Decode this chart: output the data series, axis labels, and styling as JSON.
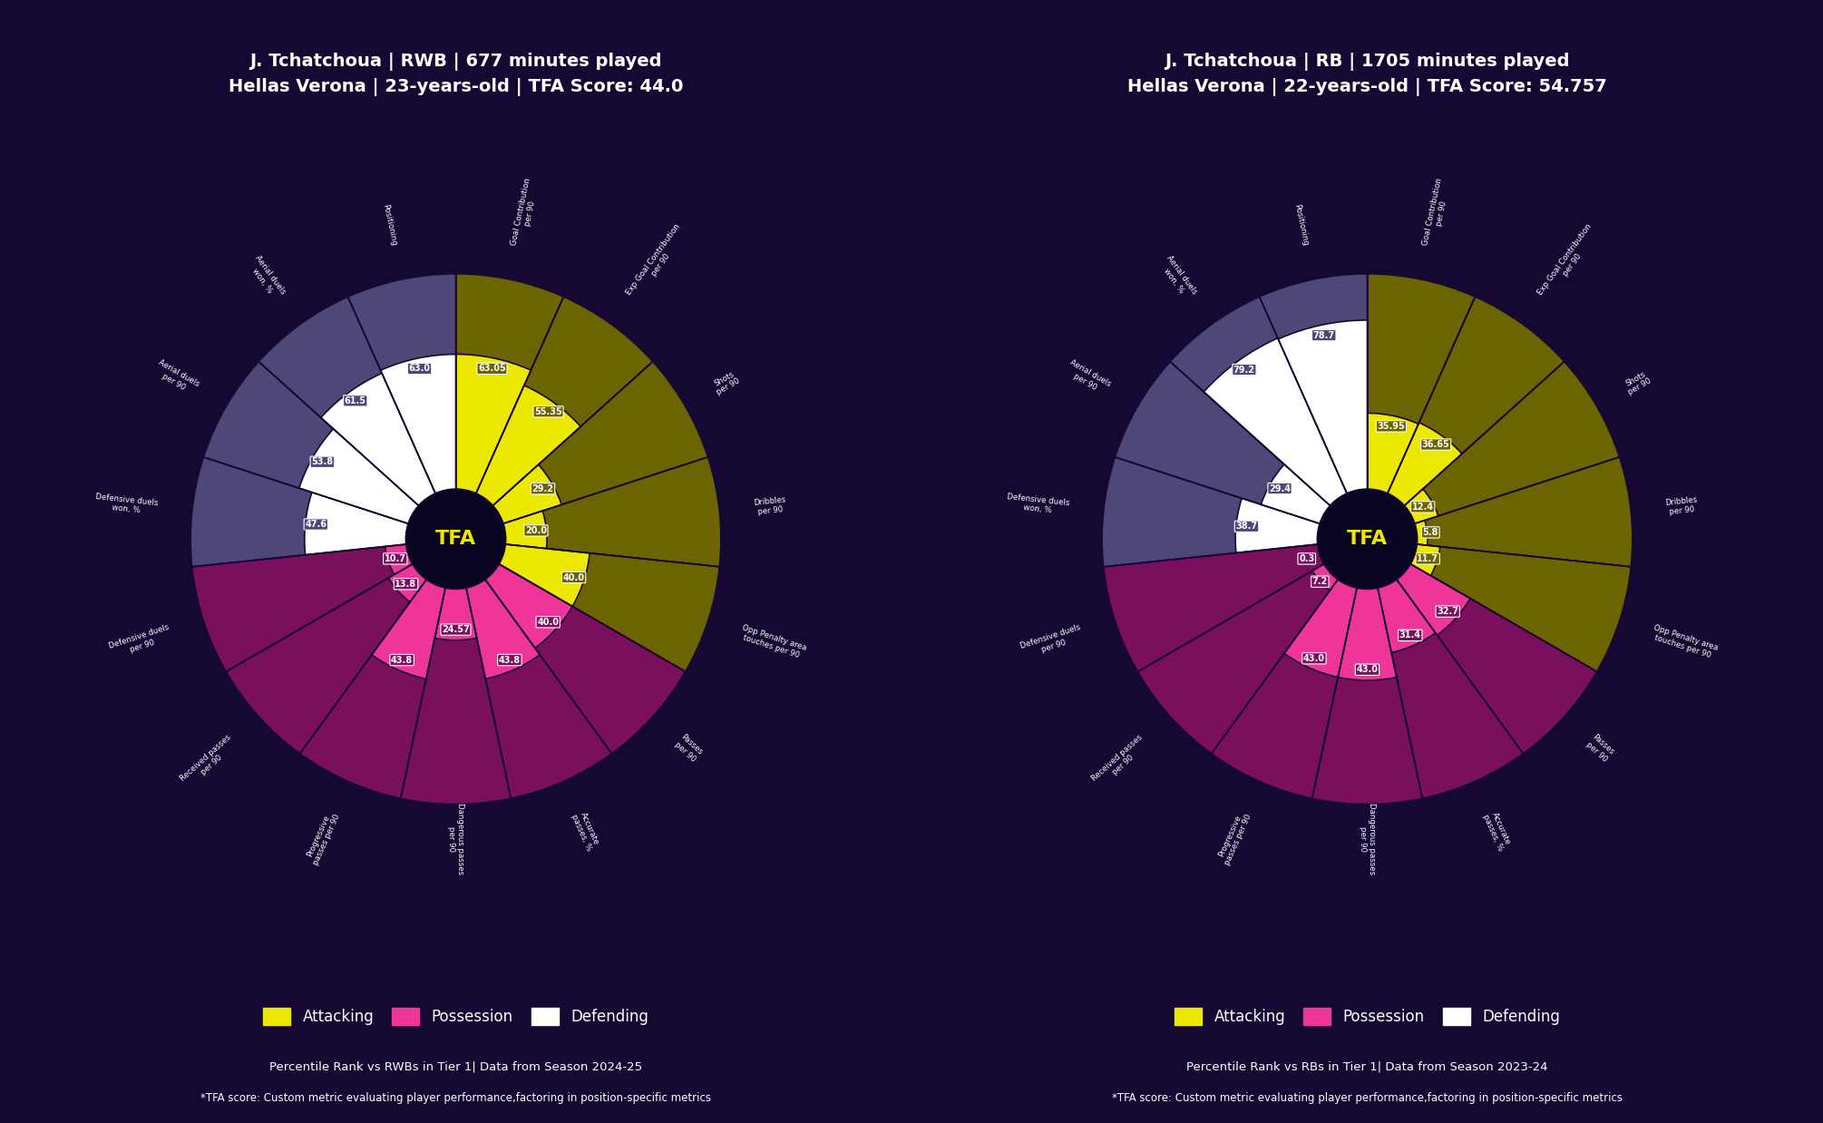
{
  "charts": [
    {
      "title_line1": "J. Tchatchoua | RWB | 677 minutes played",
      "title_line2": "Hellas Verona | 23-years-old | TFA Score: 44.0",
      "subtitle": "Percentile Rank vs RWBs in Tier 1| Data from Season 2024-25",
      "categories": [
        "Goal Contribution\nper 90",
        "Exp Goal Contribution\nper 90",
        "Shots\nper 90",
        "Dribbles\nper 90",
        "Opp Penalty area\ntouches per 90",
        "Passes\nper 90",
        "Accurate\npasses, %",
        "Dangerous passes\nper 90",
        "Progressive\npasses per 90",
        "Received passes\nper 90",
        "Defensive duels\nper 90",
        "Defensive duels\nwon, %",
        "Aerial duels\nper 90",
        "Aerial duels\nwon, %",
        "Positioning"
      ],
      "values": [
        63.05,
        55.35,
        29.2,
        20.0,
        40.0,
        40.0,
        43.8,
        24.57,
        43.8,
        13.8,
        10.7,
        47.6,
        53.8,
        61.5,
        63.0
      ],
      "colors_category": [
        "attacking",
        "attacking",
        "attacking",
        "attacking",
        "attacking",
        "possession",
        "possession",
        "possession",
        "possession",
        "possession",
        "possession",
        "defending",
        "defending",
        "defending",
        "defending"
      ]
    },
    {
      "title_line1": "J. Tchatchoua | RB | 1705 minutes played",
      "title_line2": "Hellas Verona | 22-years-old | TFA Score: 54.757",
      "subtitle": "Percentile Rank vs RBs in Tier 1| Data from Season 2023-24",
      "categories": [
        "Goal Contribution\nper 90",
        "Exp Goal Contribution\nper 90",
        "Shots\nper 90",
        "Dribbles\nper 90",
        "Opp Penalty area\ntouches per 90",
        "Passes\nper 90",
        "Accurate\npasses, %",
        "Dangerous passes\nper 90",
        "Progressive\npasses per 90",
        "Received passes\nper 90",
        "Defensive duels\nper 90",
        "Defensive duels\nwon, %",
        "Aerial duels\nper 90",
        "Aerial duels\nwon, %",
        "Positioning"
      ],
      "values": [
        35.95,
        36.65,
        12.4,
        5.8,
        11.7,
        32.7,
        31.4,
        43.0,
        43.0,
        7.2,
        0.3,
        38.7,
        29.4,
        79.2,
        78.7
      ],
      "colors_category": [
        "attacking",
        "attacking",
        "attacking",
        "attacking",
        "attacking",
        "possession",
        "possession",
        "possession",
        "possession",
        "possession",
        "possession",
        "defending",
        "defending",
        "defending",
        "defending"
      ]
    }
  ],
  "bg_colors": {
    "attacking": "#6b6400",
    "possession": "#7a0f5e",
    "defending": "#4e4878"
  },
  "bar_colors": {
    "attacking": "#ece800",
    "possession": "#f0359a",
    "defending": "#ffffff"
  },
  "background_color": "#150832",
  "text_color": "#ffffff",
  "tfa_footer": "*TFA score: Custom metric evaluating player performance,factoring in position-specific metrics"
}
